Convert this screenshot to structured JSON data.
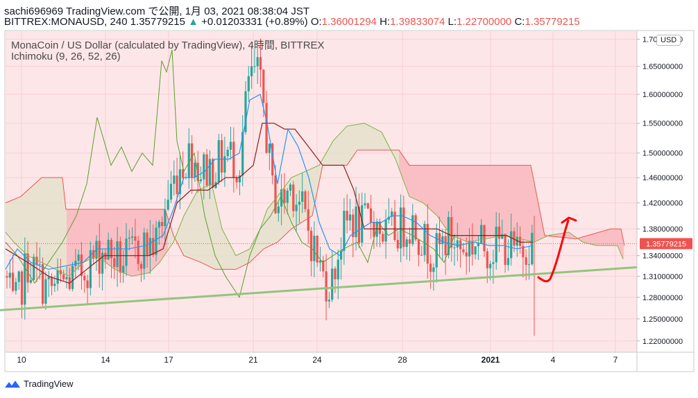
{
  "header": {
    "line1": "sachi696969 TradingView.com で公開, 1月 03, 2021 08:38:04 JST",
    "symbol_line": "BITTREX:MONAUSD, 240 1.35779215",
    "change_arrow": "▲",
    "change": "+0.01203331 (+0.89%)",
    "o_label": "O:",
    "o_value": "1.36001294",
    "h_label": "H:",
    "h_value": "1.39833074",
    "l_label": "L:",
    "l_value": "1.22700000",
    "c_label": "C:",
    "c_value": "1.35779215"
  },
  "legend": {
    "title": "MonaCoin / US Dollar (calculated by TradingView), 4時間, BITTREX",
    "indicator": "Ichimoku (9, 26, 52, 26)"
  },
  "currency_button": "USD",
  "footer": {
    "brand": "TradingView"
  },
  "colors": {
    "background": "#fde6e8",
    "up_candle": "#26a69a",
    "down_candle": "#ef5350",
    "conversion_line": "#2196f3",
    "base_line": "#8b1a1a",
    "lagging_span": "#5b9e2b",
    "leading_span_a": "#7cb342",
    "leading_span_b": "#ef5350",
    "cloud_bull": "#e5e0cc",
    "cloud_bear": "#f9b7be",
    "trendline": "#93c47d",
    "annotation": "#ff0000",
    "price_tag": "#ef5350"
  },
  "chart_data": {
    "type": "candlestick",
    "x_labels": [
      "10",
      "14",
      "17",
      "21",
      "24",
      "28",
      "2021",
      "4",
      "7"
    ],
    "y_ticks": [
      "1.70000000",
      "1.65000000",
      "1.60000000",
      "1.55000000",
      "1.50000000",
      "1.46000000",
      "1.42000000",
      "1.38000000",
      "1.34000000",
      "1.31000000",
      "1.28000000",
      "1.25000000",
      "1.22000000"
    ],
    "last_price_label": "1.35779215",
    "last_price": 1.35779215,
    "ylim": [
      1.205,
      1.715
    ],
    "scale": "log",
    "series": [
      {
        "name": "Ichimoku (9, 26, 52, 26)",
        "lines": [
          "conversion",
          "base",
          "lagging",
          "leading_a",
          "leading_b"
        ]
      }
    ],
    "trendline": [
      [
        0,
        1.262
      ],
      [
        918,
        1.323
      ]
    ]
  }
}
